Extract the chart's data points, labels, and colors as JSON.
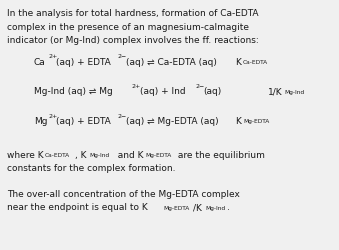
{
  "background_color": "#f0f0f0",
  "text_color": "#1a1a1a",
  "figsize": [
    3.39,
    2.5
  ],
  "dpi": 100,
  "fs": 6.5,
  "fs_sup": 4.5,
  "fs_sub2": 4.2,
  "lines": [
    "In the analysis for total hardness, formation of Ca-EDTA",
    "complex in the presence of an magnesium-calmagite",
    "indicator (or Mg-Ind) complex involves the ff. reactions:"
  ],
  "where_line1": "where K",
  "where_line2": "constants for the complex formation.",
  "last_line1": "The over-all concentration of the Mg-EDTA complex",
  "last_line2": "near the endpoint is equal to K"
}
